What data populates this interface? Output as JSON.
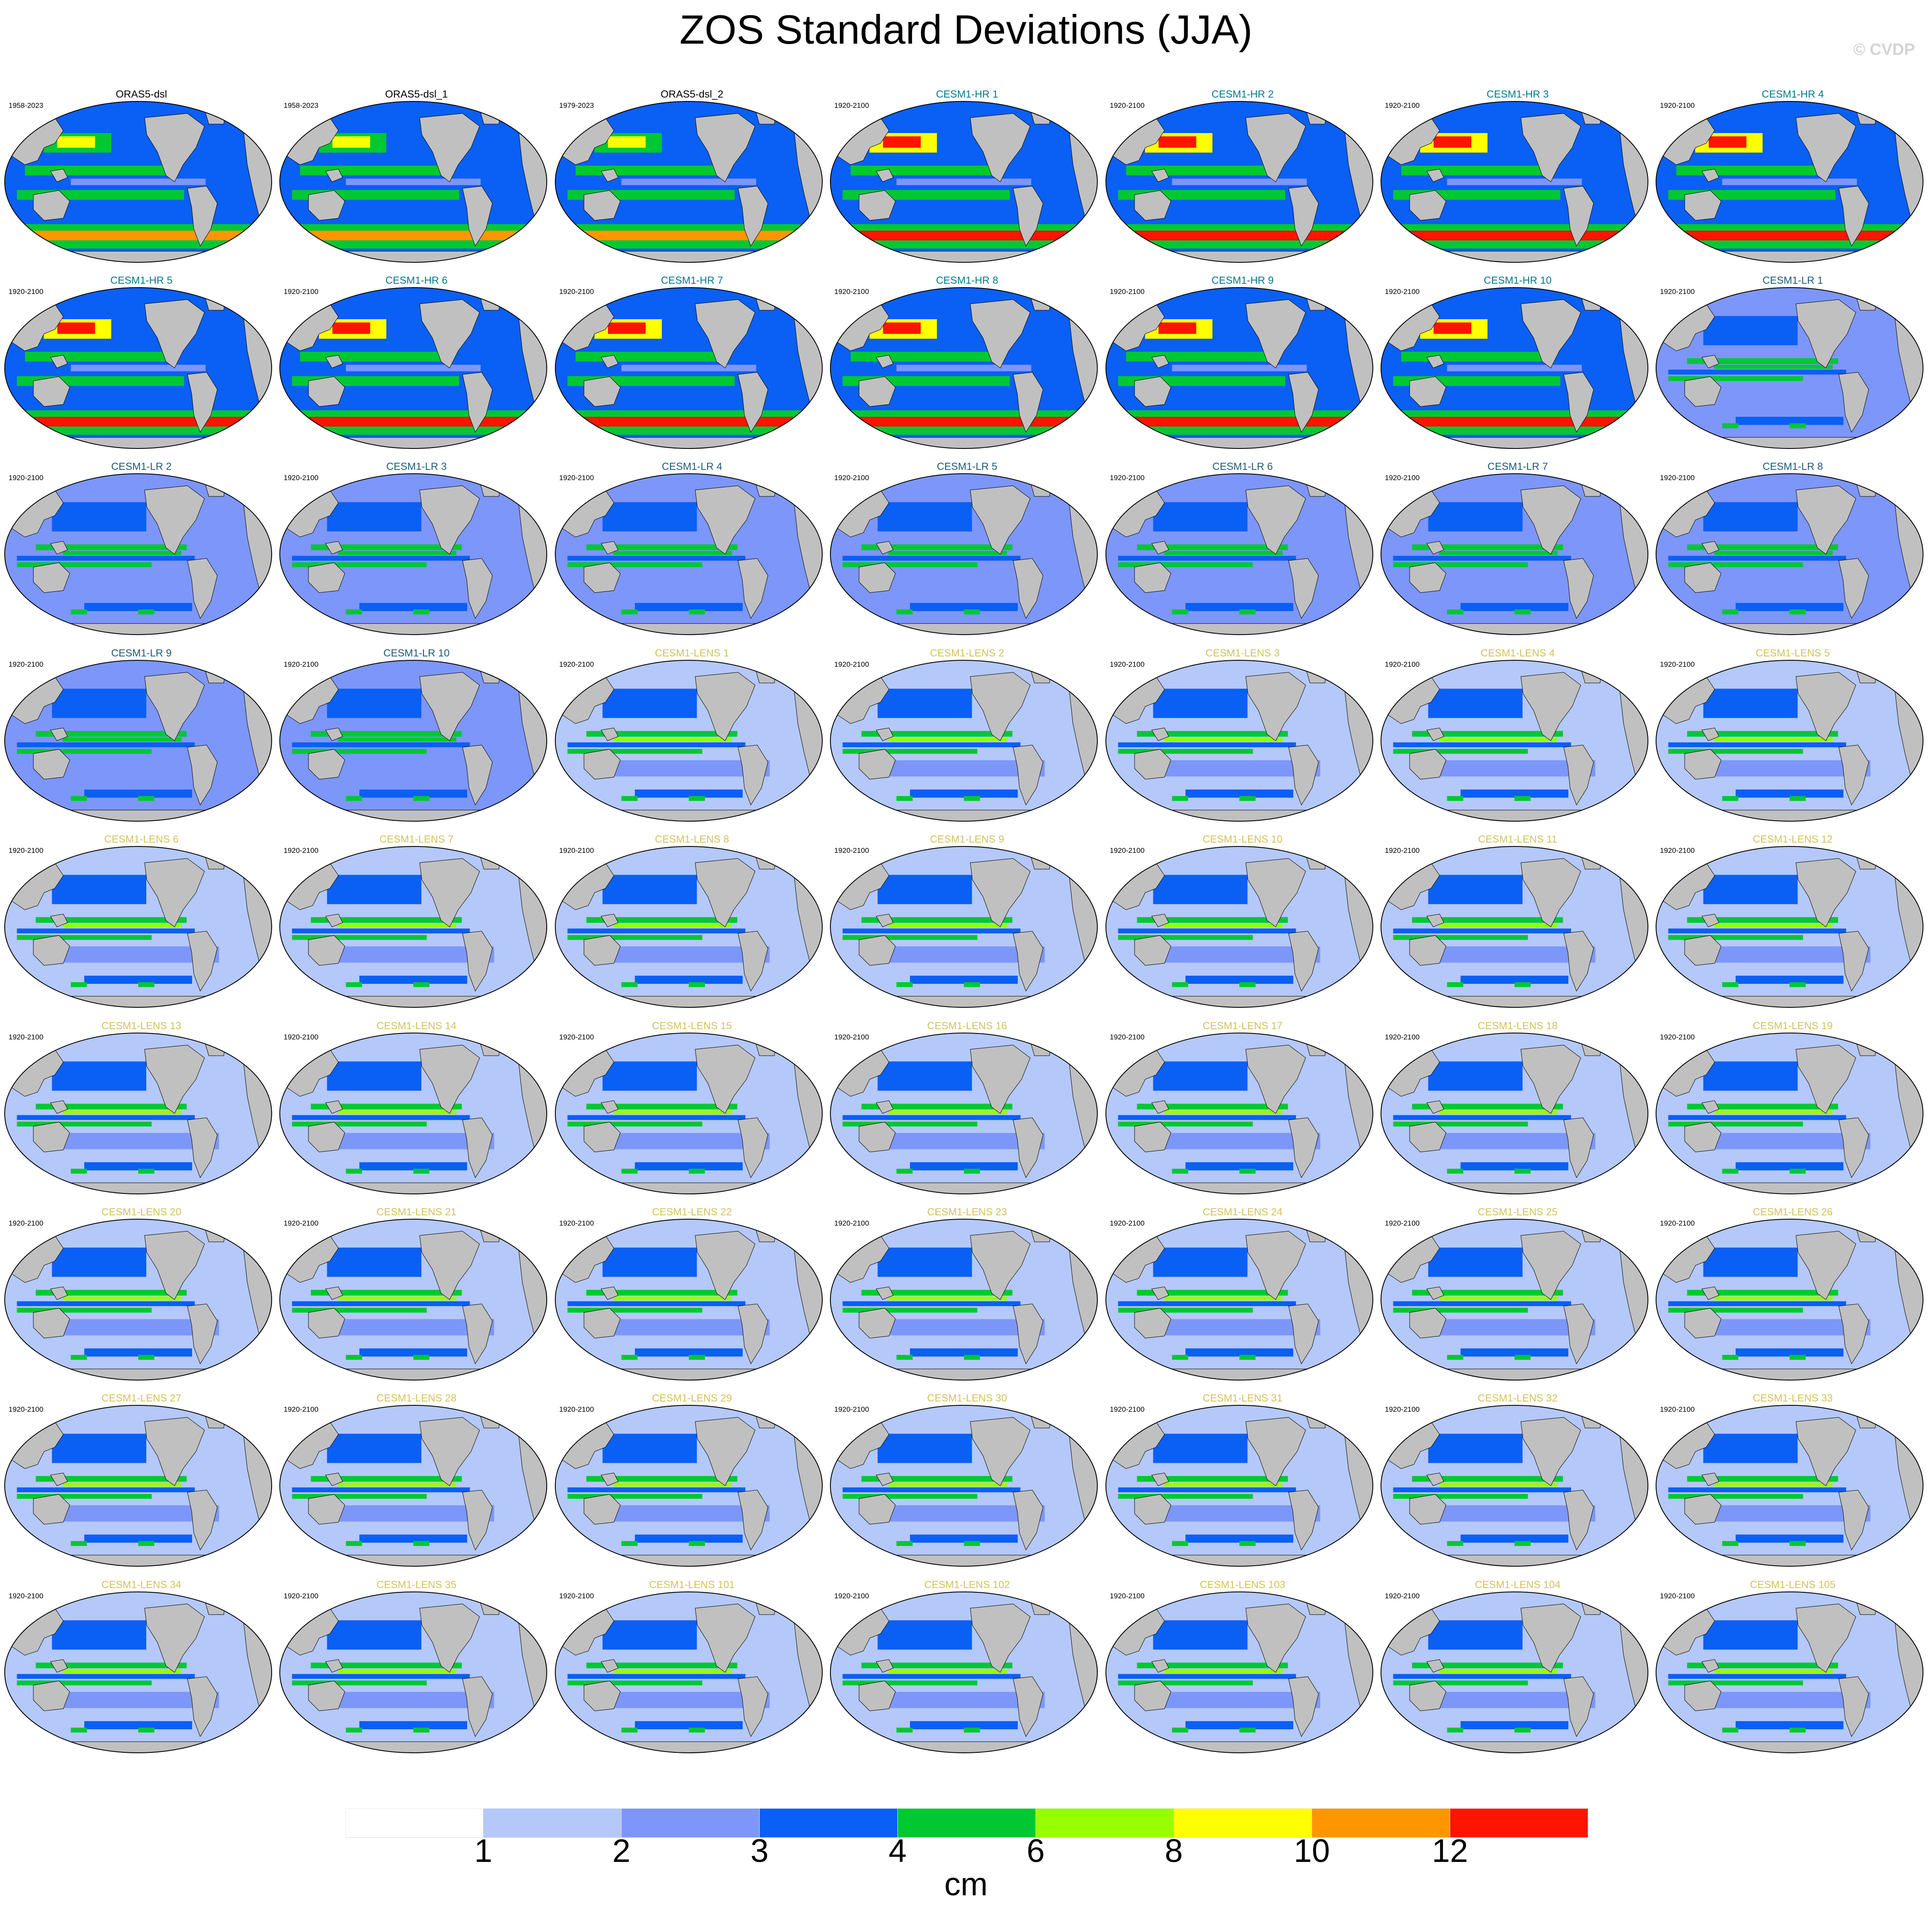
{
  "title": "ZOS Standard Deviations (JJA)",
  "watermark": "© CVDP",
  "colorbar": {
    "unit": "cm",
    "labels": [
      "1",
      "2",
      "3",
      "4",
      "6",
      "8",
      "10",
      "12"
    ],
    "colors": [
      "#ffffff",
      "#b4c8fa",
      "#7d96fa",
      "#0a5ff5",
      "#00c832",
      "#96ff00",
      "#ffff00",
      "#ff9600",
      "#ff1400"
    ]
  },
  "colors": {
    "land": "#c0c0c0",
    "coast": "#000000",
    "title_obs": "#000000",
    "title_hr": "#007a8c",
    "title_lr": "#1e5a78",
    "title_lens": "#d2c25a"
  },
  "panels": [
    {
      "title": "ORAS5-dsl",
      "years": "1958-2023",
      "group": "obs"
    },
    {
      "title": "ORAS5-dsl_1",
      "years": "1958-2023",
      "group": "obs"
    },
    {
      "title": "ORAS5-dsl_2",
      "years": "1979-2023",
      "group": "obs"
    },
    {
      "title": "CESM1-HR 1",
      "years": "1920-2100",
      "group": "hr"
    },
    {
      "title": "CESM1-HR 2",
      "years": "1920-2100",
      "group": "hr"
    },
    {
      "title": "CESM1-HR 3",
      "years": "1920-2100",
      "group": "hr"
    },
    {
      "title": "CESM1-HR 4",
      "years": "1920-2100",
      "group": "hr"
    },
    {
      "title": "CESM1-HR 5",
      "years": "1920-2100",
      "group": "hr"
    },
    {
      "title": "CESM1-HR 6",
      "years": "1920-2100",
      "group": "hr"
    },
    {
      "title": "CESM1-HR 7",
      "years": "1920-2100",
      "group": "hr"
    },
    {
      "title": "CESM1-HR 8",
      "years": "1920-2100",
      "group": "hr"
    },
    {
      "title": "CESM1-HR 9",
      "years": "1920-2100",
      "group": "hr"
    },
    {
      "title": "CESM1-HR 10",
      "years": "1920-2100",
      "group": "hr"
    },
    {
      "title": "CESM1-LR 1",
      "years": "1920-2100",
      "group": "lr"
    },
    {
      "title": "CESM1-LR 2",
      "years": "1920-2100",
      "group": "lr"
    },
    {
      "title": "CESM1-LR 3",
      "years": "1920-2100",
      "group": "lr"
    },
    {
      "title": "CESM1-LR 4",
      "years": "1920-2100",
      "group": "lr"
    },
    {
      "title": "CESM1-LR 5",
      "years": "1920-2100",
      "group": "lr"
    },
    {
      "title": "CESM1-LR 6",
      "years": "1920-2100",
      "group": "lr"
    },
    {
      "title": "CESM1-LR 7",
      "years": "1920-2100",
      "group": "lr"
    },
    {
      "title": "CESM1-LR 8",
      "years": "1920-2100",
      "group": "lr"
    },
    {
      "title": "CESM1-LR 9",
      "years": "1920-2100",
      "group": "lr"
    },
    {
      "title": "CESM1-LR 10",
      "years": "1920-2100",
      "group": "lr"
    },
    {
      "title": "CESM1-LENS 1",
      "years": "1920-2100",
      "group": "lens"
    },
    {
      "title": "CESM1-LENS 2",
      "years": "1920-2100",
      "group": "lens"
    },
    {
      "title": "CESM1-LENS 3",
      "years": "1920-2100",
      "group": "lens"
    },
    {
      "title": "CESM1-LENS 4",
      "years": "1920-2100",
      "group": "lens"
    },
    {
      "title": "CESM1-LENS 5",
      "years": "1920-2100",
      "group": "lens"
    },
    {
      "title": "CESM1-LENS 6",
      "years": "1920-2100",
      "group": "lens"
    },
    {
      "title": "CESM1-LENS 7",
      "years": "1920-2100",
      "group": "lens"
    },
    {
      "title": "CESM1-LENS 8",
      "years": "1920-2100",
      "group": "lens"
    },
    {
      "title": "CESM1-LENS 9",
      "years": "1920-2100",
      "group": "lens"
    },
    {
      "title": "CESM1-LENS 10",
      "years": "1920-2100",
      "group": "lens"
    },
    {
      "title": "CESM1-LENS 11",
      "years": "1920-2100",
      "group": "lens"
    },
    {
      "title": "CESM1-LENS 12",
      "years": "1920-2100",
      "group": "lens"
    },
    {
      "title": "CESM1-LENS 13",
      "years": "1920-2100",
      "group": "lens"
    },
    {
      "title": "CESM1-LENS 14",
      "years": "1920-2100",
      "group": "lens"
    },
    {
      "title": "CESM1-LENS 15",
      "years": "1920-2100",
      "group": "lens"
    },
    {
      "title": "CESM1-LENS 16",
      "years": "1920-2100",
      "group": "lens"
    },
    {
      "title": "CESM1-LENS 17",
      "years": "1920-2100",
      "group": "lens"
    },
    {
      "title": "CESM1-LENS 18",
      "years": "1920-2100",
      "group": "lens"
    },
    {
      "title": "CESM1-LENS 19",
      "years": "1920-2100",
      "group": "lens"
    },
    {
      "title": "CESM1-LENS 20",
      "years": "1920-2100",
      "group": "lens"
    },
    {
      "title": "CESM1-LENS 21",
      "years": "1920-2100",
      "group": "lens"
    },
    {
      "title": "CESM1-LENS 22",
      "years": "1920-2100",
      "group": "lens"
    },
    {
      "title": "CESM1-LENS 23",
      "years": "1920-2100",
      "group": "lens"
    },
    {
      "title": "CESM1-LENS 24",
      "years": "1920-2100",
      "group": "lens"
    },
    {
      "title": "CESM1-LENS 25",
      "years": "1920-2100",
      "group": "lens"
    },
    {
      "title": "CESM1-LENS 26",
      "years": "1920-2100",
      "group": "lens"
    },
    {
      "title": "CESM1-LENS 27",
      "years": "1920-2100",
      "group": "lens"
    },
    {
      "title": "CESM1-LENS 28",
      "years": "1920-2100",
      "group": "lens"
    },
    {
      "title": "CESM1-LENS 29",
      "years": "1920-2100",
      "group": "lens"
    },
    {
      "title": "CESM1-LENS 30",
      "years": "1920-2100",
      "group": "lens"
    },
    {
      "title": "CESM1-LENS 31",
      "years": "1920-2100",
      "group": "lens"
    },
    {
      "title": "CESM1-LENS 32",
      "years": "1920-2100",
      "group": "lens"
    },
    {
      "title": "CESM1-LENS 33",
      "years": "1920-2100",
      "group": "lens"
    },
    {
      "title": "CESM1-LENS 34",
      "years": "1920-2100",
      "group": "lens"
    },
    {
      "title": "CESM1-LENS 35",
      "years": "1920-2100",
      "group": "lens"
    },
    {
      "title": "CESM1-LENS 101",
      "years": "1920-2100",
      "group": "lens"
    },
    {
      "title": "CESM1-LENS 102",
      "years": "1920-2100",
      "group": "lens"
    },
    {
      "title": "CESM1-LENS 103",
      "years": "1920-2100",
      "group": "lens"
    },
    {
      "title": "CESM1-LENS 104",
      "years": "1920-2100",
      "group": "lens"
    },
    {
      "title": "CESM1-LENS 105",
      "years": "1920-2100",
      "group": "lens"
    }
  ]
}
